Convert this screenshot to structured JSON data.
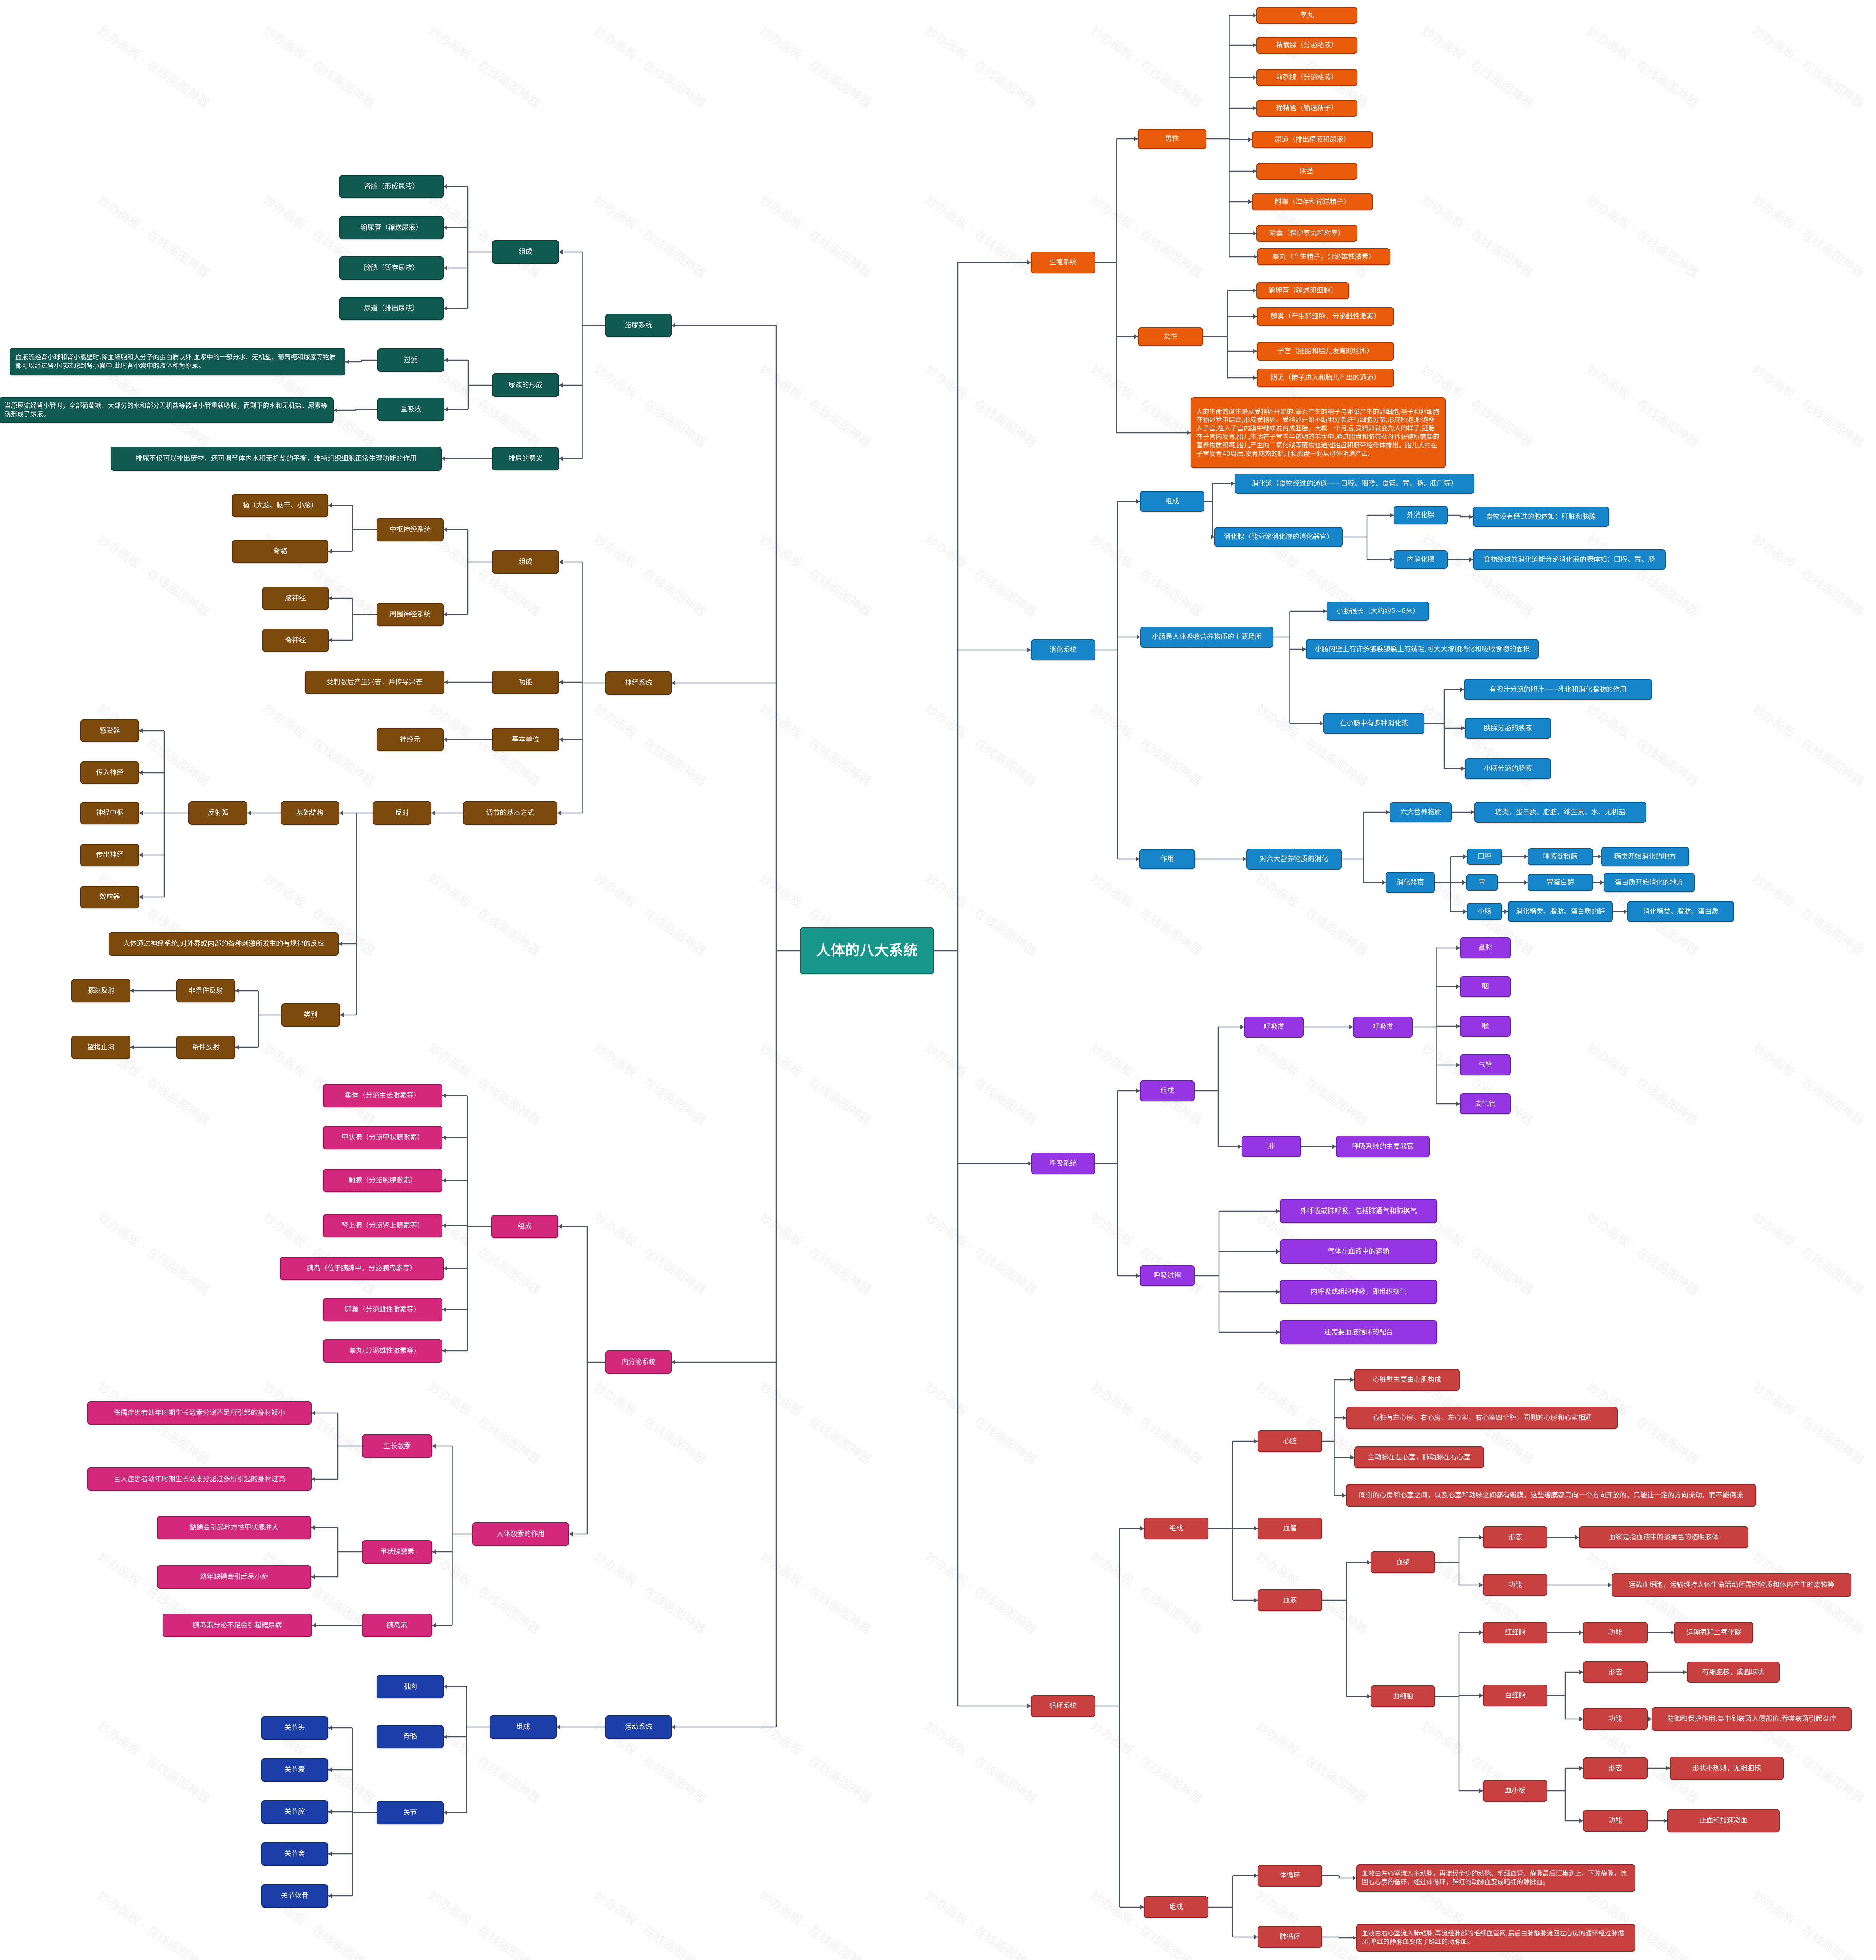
{
  "diagram": {
    "root": "人体的八大系统",
    "right": {
      "reproduction": {
        "label": "生殖系统",
        "male": {
          "label": "男性",
          "items": [
            "睾丸",
            "精囊腺（分泌粘液）",
            "前列腺（分泌粘液）",
            "输精管（输送精子）",
            "尿道（排出精液和尿液）",
            "阴茎",
            "附睾（贮存和输送精子）",
            "阴囊（保护睾丸和附睾）",
            "睾丸（产生精子，分泌雄性激素）"
          ]
        },
        "female": {
          "label": "女性",
          "items": [
            "输卵管（输送卵细胞）",
            "卵巢（产生卵细胞，分泌雌性激素）",
            "子宫（胚胎和胎儿发育的场所）",
            "阴道（精子进入和胎儿产出的通道）"
          ]
        },
        "note": "人的生命的诞生是从受精卵开始的,睾丸产生的精子与卵巢产生的卵细胞,精子和卵细胞在输卵管中结合,形成受精卵。受精卵开始不断地分裂进行细胞分裂,形成胚泡,胚泡移入子宫,植入子宫内膜中继续发育成胚胎。大概一个月后,受精卵就变为人的样子,胚胎在子宫内发育,胎儿生活在子宫内半透明的羊水中,通过胎盘和脐带从母体获得所需要的营养物质和氧,胎儿产生的二氧化碳等废物也通过胎盘和脐带经母体排出。胎儿大约在子宫发育40周后,发育成熟的胎儿和胎盘一起从母体阴道产出。"
      },
      "digestion": {
        "label": "消化系统",
        "composition": {
          "label": "组成",
          "tract": "消化道（食物经过的通道——口腔、咽喉、食管、胃、肠、肛门等）",
          "glands": {
            "label": "消化腺（能分泌消化液的消化器官）",
            "outer": {
              "label": "外消化腺",
              "desc": "食物没有经过的腺体如：肝脏和胰腺"
            },
            "inner": {
              "label": "内消化腺",
              "desc": "食物经过的消化道能分泌消化液的腺体如：口腔、胃、肠"
            }
          }
        },
        "small_intestine": {
          "label": "小肠是人体吸收营养物质的主要场所",
          "items": [
            "小肠很长（大约约5~6米）",
            "小肠内壁上有许多皱襞皱襞上有绒毛,可大大增加消化和吸收食物的面积"
          ],
          "enzymes": {
            "label": "在小肠中有多种消化液",
            "items": [
              "有胆汁分泌的胆汁——乳化和消化脂肪的作用",
              "胰腺分泌的胰液",
              "小肠分泌的肠液"
            ]
          }
        },
        "function": {
          "label": "作用",
          "digest": "对六大营养物质的消化",
          "nutrients": {
            "label": "六大营养物质",
            "desc": "糖类、蛋白质、脂肪、维生素、水、无机盐"
          },
          "organs": {
            "label": "消化器官",
            "mouth": {
              "label": "口腔",
              "a": "唾液淀粉酶",
              "b": "糖类开始消化的地方"
            },
            "stomach": {
              "label": "胃",
              "a": "胃蛋白酶",
              "b": "蛋白质开始消化的地方"
            },
            "intestine": {
              "label": "小肠",
              "a": "消化糖类、脂肪、蛋白质的酶",
              "b": "消化糖类、脂肪、蛋白质"
            }
          }
        }
      },
      "respiration": {
        "label": "呼吸系统",
        "composition": {
          "label": "组成",
          "tract_a": "呼吸道",
          "tract_b": "呼吸道",
          "items": [
            "鼻腔",
            "咽",
            "喉",
            "气管",
            "支气管"
          ],
          "lung": "肺",
          "lung_desc": "呼吸系统的主要器官"
        },
        "process": {
          "label": "呼吸过程",
          "items": [
            "外呼吸或肺呼吸，包括肺通气和肺换气",
            "气体在血液中的运输",
            "内呼吸或组织呼吸，即组织换气",
            "还需要血液循环的配合"
          ]
        }
      },
      "circulation": {
        "label": "循环系统",
        "composition": {
          "label": "组成",
          "heart": {
            "label": "心脏",
            "items": [
              "心脏壁主要由心肌构成",
              "心脏有左心房、右心房、左心室、右心室四个腔，同侧的心房和心室相通",
              "主动脉在左心室，肺动脉在右心室",
              "同侧的心房和心室之间，以及心室和动脉之间都有瓣膜，这些瓣膜都只向一个方向开放的，只能让一定的方向流动，而不能倒流"
            ]
          },
          "vessels": "血管",
          "blood": {
            "label": "血液",
            "plasma": {
              "label": "血浆",
              "form": {
                "label": "形态",
                "desc": "血浆是指血液中的淡黄色的透明液体"
              },
              "func": {
                "label": "功能",
                "desc": "运载血细胞，运输维持人体生命活动所需的物质和体内产生的废物等"
              }
            },
            "cells": {
              "label": "血细胞",
              "red": {
                "label": "红细胞",
                "fn": "功能",
                "desc": "运输氧和二氧化碳"
              },
              "white": {
                "label": "白细胞",
                "form": "形态",
                "form_desc": "有细胞核，成圆球状",
                "fn": "功能",
                "fn_desc": "防御和保护作用,集中到病菌入侵部位,吞噬病菌引起炎症"
              },
              "platelet": {
                "label": "血小板",
                "form": "形态",
                "form_desc": "形状不规则，无细胞核",
                "fn": "功能",
                "fn_desc": "止血和加速凝血"
              }
            }
          }
        },
        "pathways": {
          "label": "组成",
          "systemic": {
            "label": "体循环",
            "desc": "血液由左心室流入主动脉，再流经全身的动脉、毛细血管、静脉最后汇集到上、下腔静脉，流回右心房的循环，经过体循环，鲜红的动脉血变成暗红的静脉血。"
          },
          "pulmonary": {
            "label": "肺循环",
            "desc": "血液由右心室流入肺动脉,再流经肺部的毛细血管网,最后由肺静脉流回左心房的循环经过肺循环,暗红的静脉血变成了鲜红的动脉血。"
          }
        }
      }
    },
    "left": {
      "urinary": {
        "label": "泌尿系统",
        "composition": {
          "label": "组成",
          "items": [
            "肾脏（形成尿液）",
            "输尿管（输送尿液）",
            "膀胱（暂存尿液）",
            "尿道（排出尿液）"
          ]
        },
        "formation": {
          "label": "尿液的形成",
          "filter": {
            "label": "过滤",
            "desc": "血液流经肾小球和肾小囊壁时,除血细胞和大分子的蛋白质以外,血浆中的一部分水、无机盐、葡萄糖和尿素等物质都可以经过肾小球过滤到肾小囊中,此时肾小囊中的液体称为原尿。"
          },
          "reabsorb": {
            "label": "重吸收",
            "desc": "当原尿流经肾小管时，全部葡萄糖、大部分的水和部分无机盐等被肾小管重新吸收，而剩下的水和无机盐、尿素等就形成了尿液。"
          }
        },
        "meaning": {
          "label": "排尿的意义",
          "desc": "排尿不仅可以排出废物，还可调节体内水和无机盐的平衡，维持组织细胞正常生理功能的作用"
        }
      },
      "nervous": {
        "label": "神经系统",
        "composition": {
          "label": "组成",
          "central": {
            "label": "中枢神经系统",
            "items": [
              "脑（大脑、脑干、小脑）",
              "脊髓"
            ]
          },
          "peripheral": {
            "label": "周围神经系统",
            "items": [
              "脑神经",
              "脊神经"
            ]
          }
        },
        "function": {
          "label": "功能",
          "desc": "受刺激后产生兴奋，并传导兴奋"
        },
        "unit": {
          "label": "基本单位",
          "desc": "神经元"
        },
        "regulation": {
          "label": "调节的基本方式",
          "reflex": "反射",
          "structure": "基础结构",
          "arc": "反射弧",
          "arc_items": [
            "感受器",
            "传入神经",
            "神经中枢",
            "传出神经",
            "效应器"
          ],
          "definition": "人体通过神经系统,对外界或内部的各种刺激所发生的有规律的反应",
          "types": {
            "label": "类别",
            "unconditioned": {
              "label": "非条件反射",
              "example": "膝跳反射"
            },
            "conditioned": {
              "label": "条件反射",
              "example": "望梅止渴"
            }
          }
        }
      },
      "endocrine": {
        "label": "内分泌系统",
        "composition": {
          "label": "组成",
          "items": [
            "垂体（分泌生长激素等）",
            "甲状腺（分泌甲状腺激素）",
            "胸腺（分泌胸腺激素）",
            "肾上腺（分泌肾上腺素等）",
            "胰岛（位于胰腺中，分泌胰岛素等）",
            "卵巢（分泌雌性激素等）",
            "睾丸(分泌雄性激素等)"
          ]
        },
        "effects": {
          "label": "人体激素的作用",
          "growth": {
            "label": "生长激素",
            "items": [
              "侏儒症患者幼年时期生长激素分泌不足所引起的身材矮小",
              "巨人症患者幼年时期生长激素分泌过多所引起的身材过高"
            ]
          },
          "thyroid": {
            "label": "甲状腺激素",
            "items": [
              "缺碘会引起地方性甲状腺肿大",
              "幼年缺碘会引起呆小症"
            ]
          },
          "insulin": {
            "label": "胰岛素",
            "items": [
              "胰岛素分泌不足会引起糖尿病"
            ]
          }
        }
      },
      "motor": {
        "label": "运动系统",
        "composition": {
          "label": "组成",
          "muscle": "肌肉",
          "bone": "骨骼",
          "joint": {
            "label": "关节",
            "items": [
              "关节头",
              "关节囊",
              "关节腔",
              "关节窝",
              "关节软骨"
            ]
          }
        }
      }
    }
  },
  "watermark": "妙办画板 · 在线画图神器",
  "colors": {
    "root": "#17968b",
    "reproduction": "#ea5b0c",
    "digestion": "#1785c9",
    "respiration": "#9535e3",
    "circulation": "#c8403f",
    "urinary": "#105a51",
    "nervous": "#7b4a0c",
    "endocrine": "#d3287b",
    "motor": "#1b3ea8",
    "edge": "#4a5461"
  }
}
